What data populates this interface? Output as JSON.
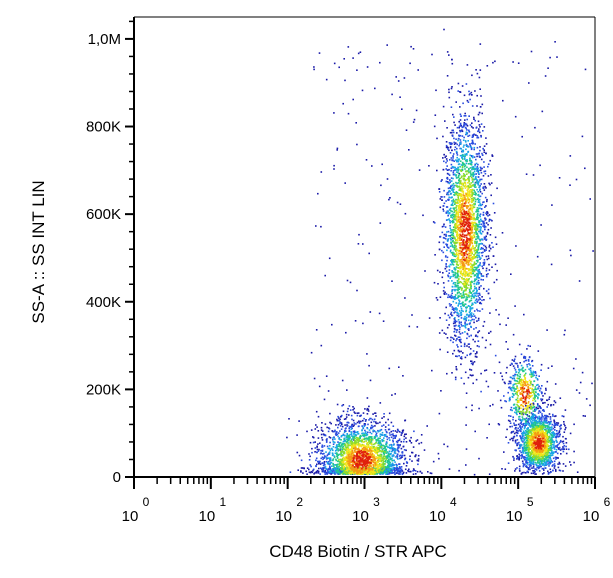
{
  "chart_data": {
    "type": "scatter",
    "style": "density-colored flow cytometry dot plot",
    "xlabel": "CD48 Biotin / STR APC",
    "ylabel": "SS-A :: SS INT LIN",
    "x_scale": "log",
    "xlim": [
      1,
      1000000
    ],
    "x_ticks": [
      {
        "base": "10",
        "exp": "0",
        "value": 1
      },
      {
        "base": "10",
        "exp": "1",
        "value": 10
      },
      {
        "base": "10",
        "exp": "2",
        "value": 100
      },
      {
        "base": "10",
        "exp": "3",
        "value": 1000
      },
      {
        "base": "10",
        "exp": "4",
        "value": 10000
      },
      {
        "base": "10",
        "exp": "5",
        "value": 100000
      },
      {
        "base": "10",
        "exp": "6",
        "value": 1000000
      }
    ],
    "y_scale": "linear",
    "ylim": [
      0,
      1050000
    ],
    "y_ticks": [
      {
        "label": "0",
        "value": 0
      },
      {
        "label": "200K",
        "value": 200000
      },
      {
        "label": "400K",
        "value": 400000
      },
      {
        "label": "600K",
        "value": 600000
      },
      {
        "label": "800K",
        "value": 800000
      },
      {
        "label": "1,0M",
        "value": 1000000
      }
    ],
    "density_colors": [
      "#1a1aa8",
      "#2a4de0",
      "#19a6e6",
      "#22c98a",
      "#8fdc2a",
      "#f2e51a",
      "#f59a14",
      "#e0200c"
    ],
    "populations": [
      {
        "center_x": 900,
        "center_y": 40000,
        "spread_x_decades": 0.28,
        "spread_y": 45000,
        "count": 2600
      },
      {
        "center_x": 20000,
        "center_y": 560000,
        "spread_x_decades": 0.14,
        "spread_y": 130000,
        "count": 2700
      },
      {
        "center_x": 180000,
        "center_y": 80000,
        "spread_x_decades": 0.14,
        "spread_y": 35000,
        "count": 1500
      },
      {
        "center_x": 120000,
        "center_y": 190000,
        "spread_x_decades": 0.12,
        "spread_y": 45000,
        "count": 500
      }
    ],
    "grid": false,
    "legend": "none"
  }
}
